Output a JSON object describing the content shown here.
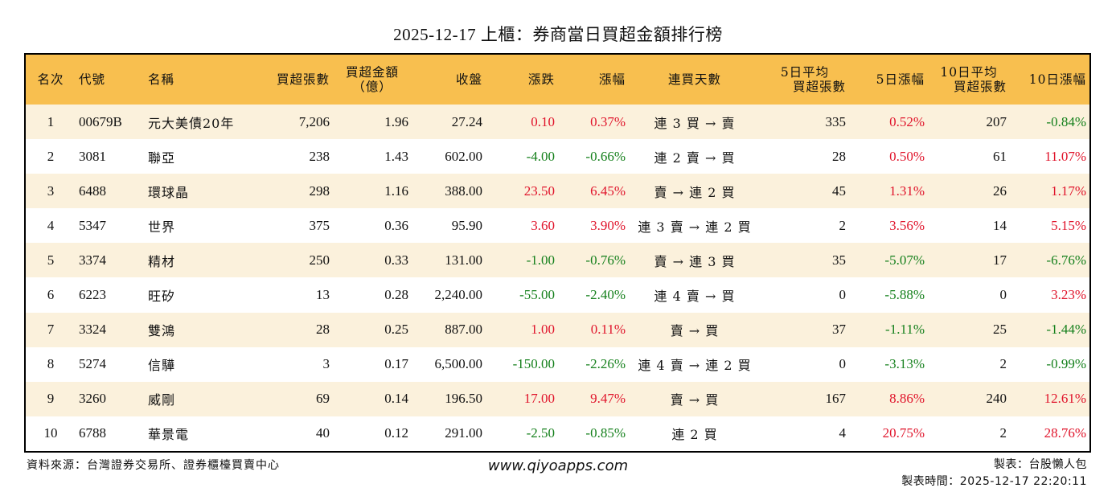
{
  "title": "2025-12-17 上櫃：券商當日買超金額排行榜",
  "colors": {
    "header_bg": "#F8BF4F",
    "stripe_bg": "#FBF1DC",
    "up": "#E0142B",
    "down": "#15801C"
  },
  "table": {
    "headers": {
      "rank": "名次",
      "code": "代號",
      "name": "名稱",
      "net_lots": "買超張數",
      "net_amount_line1": "買超金額",
      "net_amount_line2": "（億）",
      "close": "收盤",
      "change": "漲跌",
      "change_pct": "漲幅",
      "streak": "連買天數",
      "avg5_line1": "5日平均",
      "avg5_line2": "買超張數",
      "pct5": "5日漲幅",
      "avg10_line1": "10日平均",
      "avg10_line2": "買超張數",
      "pct10": "10日漲幅"
    },
    "rows": [
      {
        "rank": "1",
        "code": "00679B",
        "name": "元大美債20年",
        "net_lots": "7,206",
        "net_amount": "1.96",
        "close": "27.24",
        "change": "0.10",
        "change_dir": "up",
        "change_pct": "0.37%",
        "streak": "連 3 買 → 賣",
        "avg5": "335",
        "pct5": "0.52%",
        "pct5_dir": "up",
        "avg10": "207",
        "pct10": "-0.84%",
        "pct10_dir": "down"
      },
      {
        "rank": "2",
        "code": "3081",
        "name": "聯亞",
        "net_lots": "238",
        "net_amount": "1.43",
        "close": "602.00",
        "change": "-4.00",
        "change_dir": "down",
        "change_pct": "-0.66%",
        "streak": "連 2 賣 → 買",
        "avg5": "28",
        "pct5": "0.50%",
        "pct5_dir": "up",
        "avg10": "61",
        "pct10": "11.07%",
        "pct10_dir": "up"
      },
      {
        "rank": "3",
        "code": "6488",
        "name": "環球晶",
        "net_lots": "298",
        "net_amount": "1.16",
        "close": "388.00",
        "change": "23.50",
        "change_dir": "up",
        "change_pct": "6.45%",
        "streak": "賣 → 連 2 買",
        "avg5": "45",
        "pct5": "1.31%",
        "pct5_dir": "up",
        "avg10": "26",
        "pct10": "1.17%",
        "pct10_dir": "up"
      },
      {
        "rank": "4",
        "code": "5347",
        "name": "世界",
        "net_lots": "375",
        "net_amount": "0.36",
        "close": "95.90",
        "change": "3.60",
        "change_dir": "up",
        "change_pct": "3.90%",
        "streak": "連 3 賣 → 連 2 買",
        "avg5": "2",
        "pct5": "3.56%",
        "pct5_dir": "up",
        "avg10": "14",
        "pct10": "5.15%",
        "pct10_dir": "up"
      },
      {
        "rank": "5",
        "code": "3374",
        "name": "精材",
        "net_lots": "250",
        "net_amount": "0.33",
        "close": "131.00",
        "change": "-1.00",
        "change_dir": "down",
        "change_pct": "-0.76%",
        "streak": "賣 → 連 3 買",
        "avg5": "35",
        "pct5": "-5.07%",
        "pct5_dir": "down",
        "avg10": "17",
        "pct10": "-6.76%",
        "pct10_dir": "down"
      },
      {
        "rank": "6",
        "code": "6223",
        "name": "旺矽",
        "net_lots": "13",
        "net_amount": "0.28",
        "close": "2,240.00",
        "change": "-55.00",
        "change_dir": "down",
        "change_pct": "-2.40%",
        "streak": "連 4 賣 → 買",
        "avg5": "0",
        "pct5": "-5.88%",
        "pct5_dir": "down",
        "avg10": "0",
        "pct10": "3.23%",
        "pct10_dir": "up"
      },
      {
        "rank": "7",
        "code": "3324",
        "name": "雙鴻",
        "net_lots": "28",
        "net_amount": "0.25",
        "close": "887.00",
        "change": "1.00",
        "change_dir": "up",
        "change_pct": "0.11%",
        "streak": "賣 → 買",
        "avg5": "37",
        "pct5": "-1.11%",
        "pct5_dir": "down",
        "avg10": "25",
        "pct10": "-1.44%",
        "pct10_dir": "down"
      },
      {
        "rank": "8",
        "code": "5274",
        "name": "信驊",
        "net_lots": "3",
        "net_amount": "0.17",
        "close": "6,500.00",
        "change": "-150.00",
        "change_dir": "down",
        "change_pct": "-2.26%",
        "streak": "連 4 賣 → 連 2 買",
        "avg5": "0",
        "pct5": "-3.13%",
        "pct5_dir": "down",
        "avg10": "2",
        "pct10": "-0.99%",
        "pct10_dir": "down"
      },
      {
        "rank": "9",
        "code": "3260",
        "name": "威剛",
        "net_lots": "69",
        "net_amount": "0.14",
        "close": "196.50",
        "change": "17.00",
        "change_dir": "up",
        "change_pct": "9.47%",
        "streak": "賣 → 買",
        "avg5": "167",
        "pct5": "8.86%",
        "pct5_dir": "up",
        "avg10": "240",
        "pct10": "12.61%",
        "pct10_dir": "up"
      },
      {
        "rank": "10",
        "code": "6788",
        "name": "華景電",
        "net_lots": "40",
        "net_amount": "0.12",
        "close": "291.00",
        "change": "-2.50",
        "change_dir": "down",
        "change_pct": "-0.85%",
        "streak": "連 2 買",
        "avg5": "4",
        "pct5": "20.75%",
        "pct5_dir": "up",
        "avg10": "2",
        "pct10": "28.76%",
        "pct10_dir": "up"
      }
    ]
  },
  "footer": {
    "source": "資料來源：台灣證券交易所、證券櫃檯買賣中心",
    "website": "www.qiyoapps.com",
    "author": "製表：台股懶人包",
    "timestamp": "製表時間：2025-12-17 22:20:11"
  }
}
